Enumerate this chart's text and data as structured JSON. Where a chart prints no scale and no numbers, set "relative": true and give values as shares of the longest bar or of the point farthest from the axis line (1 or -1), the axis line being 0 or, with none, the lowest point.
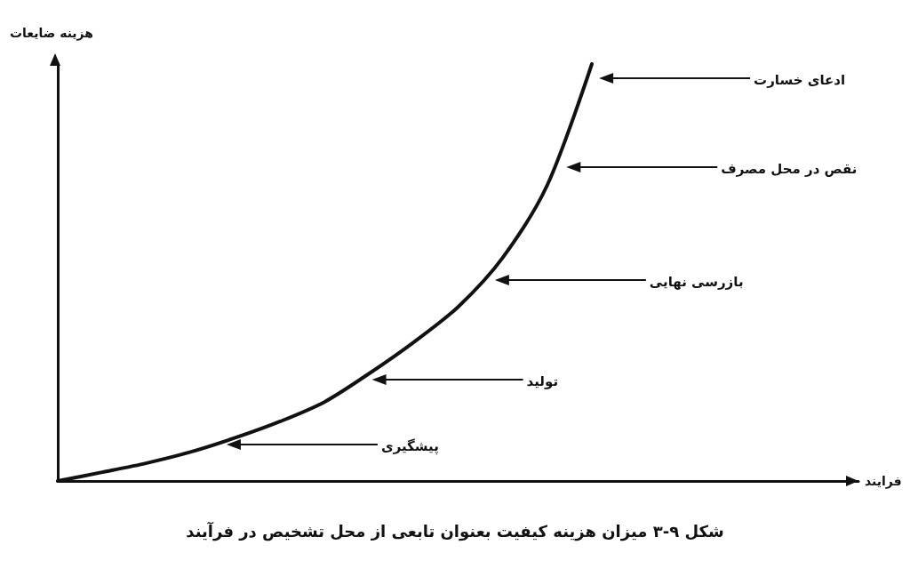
{
  "chart_data": {
    "type": "line",
    "relative": true,
    "title": "شکل ۹-۳ میزان هزینه کیفیت بعنوان تابعی از محل تشخیص در فرآیند",
    "ylabel": "هزینه ضایعات",
    "categories": [
      null,
      null,
      null,
      null,
      null,
      null,
      null,
      null,
      null,
      null,
      null,
      null,
      null
    ],
    "series": [
      {
        "color": "#111111",
        "values": [
          0,
          0.021,
          0.043,
          0.07,
          0.104,
          0.143,
          0.19,
          0.258,
          0.333,
          0.418,
          0.536,
          0.71,
          1
        ]
      }
    ],
    "annotations": [
      "ادعای خسارت",
      "نقص در محل مصرف",
      "بازرسی نهایی",
      "تولید",
      "پیشگیری",
      "فرایند"
    ]
  }
}
